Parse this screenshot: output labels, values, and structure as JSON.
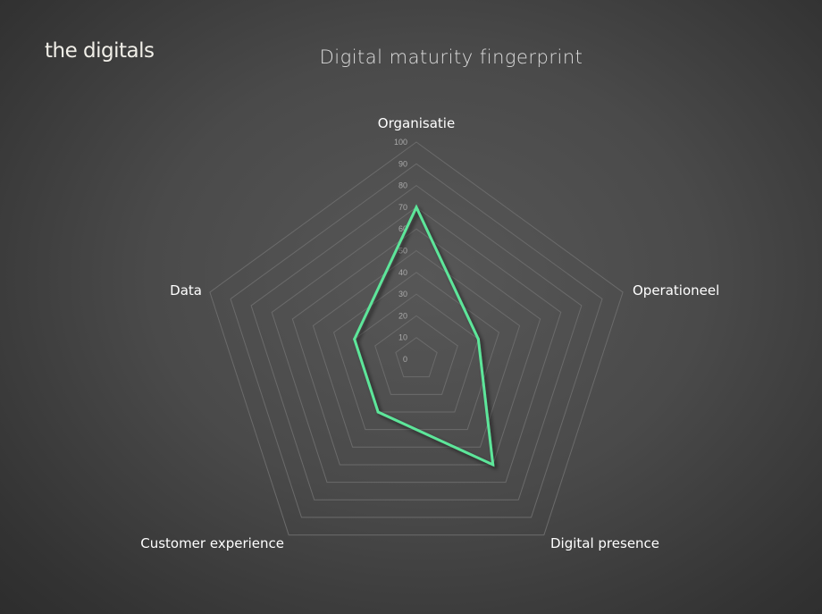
{
  "logo": "the digitals",
  "chart_data": {
    "type": "radar",
    "title": "Digital maturity fingerprint",
    "categories": [
      "Organisatie",
      "Operationeel",
      "Digital presence",
      "Customer experience",
      "Data"
    ],
    "values": [
      70,
      30,
      60,
      30,
      30
    ],
    "rlim": [
      0,
      100
    ],
    "ticks": [
      "0",
      "10",
      "20",
      "30",
      "40",
      "50",
      "60",
      "70",
      "80",
      "90",
      "100"
    ],
    "grid": true,
    "line_color": "#5de69a",
    "grid_color": "#6b6b6b"
  }
}
